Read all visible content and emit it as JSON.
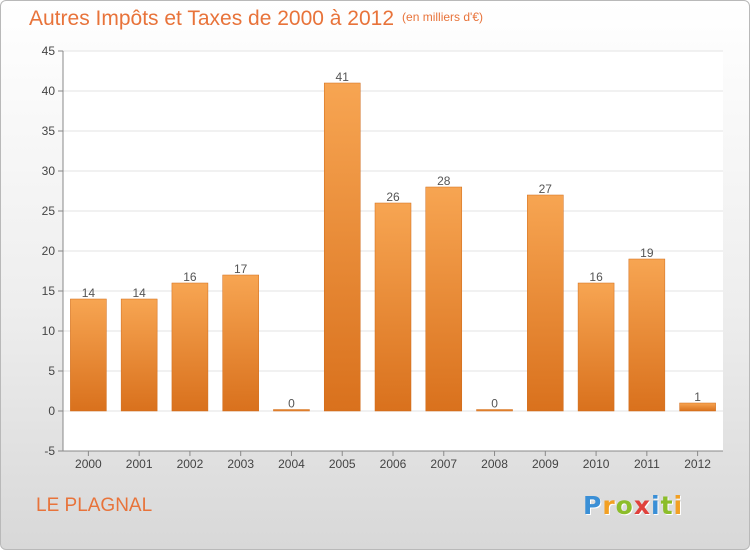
{
  "chart_data": {
    "type": "bar",
    "title": "Autres Impôts et Taxes de 2000 à 2012",
    "subtitle": "(en milliers d'€)",
    "categories": [
      "2000",
      "2001",
      "2002",
      "2003",
      "2004",
      "2005",
      "2006",
      "2007",
      "2008",
      "2009",
      "2010",
      "2011",
      "2012"
    ],
    "values": [
      14,
      14,
      16,
      17,
      0,
      41,
      26,
      28,
      0,
      27,
      16,
      19,
      1
    ],
    "value_labels": [
      "14",
      "14",
      "16",
      "17",
      "0",
      "41",
      "26",
      "28",
      "0",
      "27",
      "16",
      "19",
      "1"
    ],
    "ylim": [
      -5,
      45
    ],
    "yticks": [
      -5,
      0,
      5,
      10,
      15,
      20,
      25,
      30,
      35,
      40,
      45
    ],
    "ytick_labels": [
      "-5",
      "0",
      "5",
      "10",
      "15",
      "20",
      "25",
      "30",
      "35",
      "40",
      "45"
    ],
    "grid": true,
    "bar_color": "#f0903c",
    "xlabel": "",
    "ylabel": ""
  },
  "footer": {
    "location": "LE PLAGNAL"
  },
  "logo": {
    "letters": [
      "P",
      "r",
      "o",
      "x",
      "i",
      "t",
      "i"
    ],
    "colors": [
      "#3a8fd6",
      "#f2a023",
      "#8cbd2a",
      "#e0413c",
      "#3a8fd6",
      "#8cbd2a",
      "#f2a023"
    ]
  }
}
